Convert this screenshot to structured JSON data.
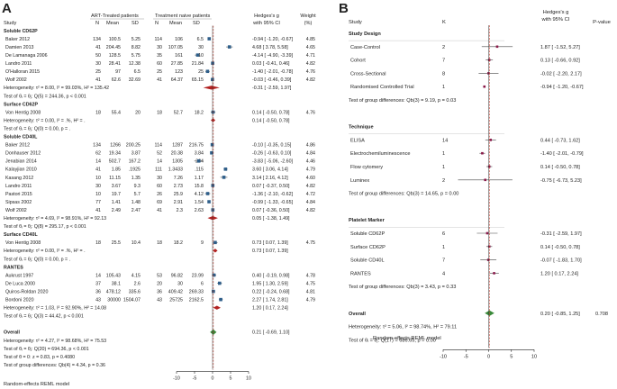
{
  "panel_a": {
    "letter": "A",
    "headers": {
      "study": "Study",
      "group1": "ART-Treated patients",
      "group2": "Treatment naive patients",
      "n": "N",
      "mean": "Mean",
      "sd": "SD",
      "effect1": "Hedges's g",
      "effect2": "with 95% CI",
      "weight1": "Weight",
      "weight2": "(%)"
    },
    "footer": "Random-effects REML model"
  },
  "panel_b": {
    "letter": "B",
    "headers": {
      "study": "Study",
      "k": "K",
      "effect1": "Hedges's g",
      "effect2": "with 95% CI",
      "pvalue": "P-value"
    },
    "footer": "Random-effects REML model"
  },
  "chart_data": [
    {
      "type": "forest",
      "panel": "A",
      "xlim": [
        -10,
        10
      ],
      "xticks": [
        -10,
        -5,
        0,
        5,
        10
      ],
      "null_line": 0,
      "overall_line": 0.21,
      "rows": [
        {
          "kind": "header",
          "label": "Soluble CD62P"
        },
        {
          "kind": "study",
          "label": "Baker 2012",
          "n1": "134",
          "m1": "100.5",
          "s1": "5.25",
          "n2": "114",
          "m2": "106",
          "s2": "6.5",
          "es": -0.94,
          "lo": -1.2,
          "hi": -0.67,
          "ci": "-0.94 [ -1.20, -0.67]",
          "w": "4.85"
        },
        {
          "kind": "study",
          "label": "Damien 2013",
          "n1": "41",
          "m1": "204.45",
          "s1": "8.82",
          "n2": "30",
          "m2": "107.05",
          "s2": "30",
          "es": 4.68,
          "lo": 3.78,
          "hi": 5.58,
          "ci": "4.68 [ 3.78, 5.58]",
          "w": "4.65"
        },
        {
          "kind": "study",
          "label": "De Lamanaga 2006",
          "n1": "50",
          "m1": "128.5",
          "s1": "5.75",
          "n2": "35",
          "m2": "161",
          "s2": "10",
          "es": -4.14,
          "lo": -4.9,
          "hi": -3.39,
          "ci": "-4.14 [ -4.90, -3.39]",
          "w": "4.71"
        },
        {
          "kind": "study",
          "label": "Landro 2011",
          "n1": "30",
          "m1": "28.41",
          "s1": "12.38",
          "n2": "60",
          "m2": "27.85",
          "s2": "21.84",
          "es": 0.03,
          "lo": -0.41,
          "hi": 0.46,
          "ci": "0.03 [ -0.41, 0.46]",
          "w": "4.82"
        },
        {
          "kind": "study",
          "label": "O'Halloran 2015",
          "n1": "25",
          "m1": "97",
          "s1": "6.5",
          "n2": "25",
          "m2": "123",
          "s2": "25",
          "es": -1.4,
          "lo": -2.01,
          "hi": -0.78,
          "ci": "-1.40 [ -2.01, -0.78]",
          "w": "4.76"
        },
        {
          "kind": "study",
          "label": "Wolf 2002",
          "n1": "41",
          "m1": "62.6",
          "s1": "32.69",
          "n2": "41",
          "m2": "64.37",
          "s2": "65.15",
          "es": -0.03,
          "lo": -0.46,
          "hi": 0.39,
          "ci": "-0.03 [ -0.46, 0.39]",
          "w": "4.82"
        },
        {
          "kind": "pooled",
          "label": "Heterogeneity: τ² = 8.00, I² = 99.03%, H² = 135.42",
          "es": -0.31,
          "lo": -2.59,
          "hi": 1.97,
          "ci": "-0.31 [ -2.59, 1.97]"
        },
        {
          "kind": "note",
          "label": "Test of θᵢ = θⱼ: Q(5) = 244.36, p < 0.001"
        },
        {
          "kind": "header",
          "label": "Surface CD62P"
        },
        {
          "kind": "study",
          "label": "Von Hentig 2008",
          "n1": "18",
          "m1": "55.4",
          "s1": "20",
          "n2": "18",
          "m2": "52.7",
          "s2": "18.2",
          "es": 0.14,
          "lo": -0.5,
          "hi": 0.78,
          "ci": "0.14 [ -0.50, 0.78]",
          "w": "4.76"
        },
        {
          "kind": "pooled",
          "label": "Heterogeneity: τ² = 0.00, I² = .%, H² = .",
          "es": 0.14,
          "lo": -0.5,
          "hi": 0.78,
          "ci": "0.14 [ -0.50, 0.78]"
        },
        {
          "kind": "note",
          "label": "Test of θᵢ = θⱼ: Q(0) = 0.00, p = ."
        },
        {
          "kind": "header",
          "label": "Soluble CD40L"
        },
        {
          "kind": "study",
          "label": "Baker 2012",
          "n1": "134",
          "m1": "1266",
          "s1": "200.25",
          "n2": "114",
          "m2": "1287",
          "s2": "216.75",
          "es": -0.1,
          "lo": -0.35,
          "hi": 0.15,
          "ci": "-0.10 [ -0.35, 0.15]",
          "w": "4.86"
        },
        {
          "kind": "study",
          "label": "Donhauser 2012",
          "n1": "62",
          "m1": "19.34",
          "s1": "3.87",
          "n2": "52",
          "m2": "20.38",
          "s2": "3.84",
          "es": -0.26,
          "lo": -0.63,
          "hi": 0.1,
          "ci": "-0.26 [ -0.63, 0.10]",
          "w": "4.84"
        },
        {
          "kind": "study",
          "label": "Jenabian 2014",
          "n1": "14",
          "m1": "502.7",
          "s1": "167.2",
          "n2": "14",
          "m2": "1305",
          "s2": "234",
          "es": -3.83,
          "lo": -5.06,
          "hi": -2.6,
          "ci": "-3.83 [ -5.06, -2.60]",
          "w": "4.46"
        },
        {
          "kind": "study",
          "label": "Kalayjian 2010",
          "n1": "41",
          "m1": "1.85",
          "s1": ".1925",
          "n2": "111",
          "m2": "1.3433",
          "s2": ".115",
          "es": 3.6,
          "lo": 3.06,
          "hi": 4.14,
          "ci": "3.60 [ 3.06, 4.14]",
          "w": "4.79"
        },
        {
          "kind": "study",
          "label": "Kasang 2012",
          "n1": "10",
          "m1": "11.15",
          "s1": "1.35",
          "n2": "30",
          "m2": "7.26",
          "s2": "1.17",
          "es": 3.14,
          "lo": 2.16,
          "hi": 4.12,
          "ci": "3.14 [ 2.16, 4.12]",
          "w": "4.60"
        },
        {
          "kind": "study",
          "label": "Landro 2011",
          "n1": "30",
          "m1": "3.67",
          "s1": "9.3",
          "n2": "60",
          "m2": "2.73",
          "s2": "15.8",
          "es": 0.07,
          "lo": -0.37,
          "hi": 0.5,
          "ci": "0.07 [ -0.37, 0.50]",
          "w": "4.82"
        },
        {
          "kind": "study",
          "label": "Pastori 2015",
          "n1": "10",
          "m1": "19.7",
          "s1": "5.7",
          "n2": "26",
          "m2": "25.9",
          "s2": "4.12",
          "es": -1.36,
          "lo": -2.1,
          "hi": -0.62,
          "ci": "-1.36 [ -2.10, -0.62]",
          "w": "4.72"
        },
        {
          "kind": "study",
          "label": "Sipsas 2002",
          "n1": "77",
          "m1": "1.41",
          "s1": "1.48",
          "n2": "69",
          "m2": "2.91",
          "s2": "1.54",
          "es": -0.99,
          "lo": -1.33,
          "hi": -0.65,
          "ci": "-0.99 [ -1.33, -0.65]",
          "w": "4.84"
        },
        {
          "kind": "study",
          "label": "Wolf 2002",
          "n1": "41",
          "m1": "2.49",
          "s1": "2.47",
          "n2": "41",
          "m2": "2.3",
          "s2": "2.63",
          "es": 0.07,
          "lo": -0.36,
          "hi": 0.5,
          "ci": "0.07 [ -0.36, 0.50]",
          "w": "4.82"
        },
        {
          "kind": "pooled",
          "label": "Heterogeneity: τ² = 4.69, I² = 98.91%, H² = 92.13",
          "es": 0.05,
          "lo": -1.38,
          "hi": 1.49,
          "ci": "0.05 [ -1.38, 1.49]"
        },
        {
          "kind": "note",
          "label": "Test of θᵢ = θⱼ: Q(8) = 295.17, p < 0.001"
        },
        {
          "kind": "header",
          "label": "Surface CD40L"
        },
        {
          "kind": "study",
          "label": "Von Hentig 2008",
          "n1": "18",
          "m1": "25.5",
          "s1": "10.4",
          "n2": "18",
          "m2": "18.2",
          "s2": "9",
          "es": 0.73,
          "lo": 0.07,
          "hi": 1.39,
          "ci": "0.73 [ 0.07, 1.39]",
          "w": "4.75"
        },
        {
          "kind": "pooled",
          "label": "Heterogeneity: τ² = 0.00, I² = .%, H² = .",
          "es": 0.73,
          "lo": 0.07,
          "hi": 1.39,
          "ci": "0.73 [ 0.07, 1.39]"
        },
        {
          "kind": "note",
          "label": "Test of θᵢ = θⱼ: Q(0) = 0.00, p = ."
        },
        {
          "kind": "header",
          "label": "RANTES"
        },
        {
          "kind": "study",
          "label": "Aukrust 1997",
          "n1": "14",
          "m1": "105.43",
          "s1": "4.15",
          "n2": "53",
          "m2": "96.82",
          "s2": "23.99",
          "es": 0.4,
          "lo": -0.19,
          "hi": 0.98,
          "ci": "0.40 [ -0.19, 0.98]",
          "w": "4.78"
        },
        {
          "kind": "study",
          "label": "De Luca 2000",
          "n1": "37",
          "m1": "38.1",
          "s1": "2.6",
          "n2": "20",
          "m2": "30",
          "s2": "6",
          "es": 1.95,
          "lo": 1.3,
          "hi": 2.59,
          "ci": "1.95 [ 1.30, 2.59]",
          "w": "4.75"
        },
        {
          "kind": "study",
          "label": "Quiros-Roldan 2020",
          "n1": "36",
          "m1": "478.12",
          "s1": "335.6",
          "n2": "36",
          "m2": "409.42",
          "s2": "269.33",
          "es": 0.22,
          "lo": -0.24,
          "hi": 0.68,
          "ci": "0.22 [ -0.24, 0.68]",
          "w": "4.81"
        },
        {
          "kind": "study",
          "label": "Bordoni 2020",
          "n1": "43",
          "m1": "30000",
          "s1": "1504.07",
          "n2": "43",
          "m2": "25725",
          "s2": "2162.5",
          "es": 2.27,
          "lo": 1.74,
          "hi": 2.81,
          "ci": "2.27 [ 1.74, 2.81]",
          "w": "4.79"
        },
        {
          "kind": "pooled",
          "label": "Heterogeneity: τ² = 1.03, I² = 92.90%, H² = 14.08",
          "es": 1.2,
          "lo": 0.17,
          "hi": 2.24,
          "ci": "1.20 [ 0.17, 2.24]"
        },
        {
          "kind": "note",
          "label": "Test of θᵢ = θⱼ: Q(3) = 44.42, p < 0.001"
        },
        {
          "kind": "blank"
        },
        {
          "kind": "overall",
          "label": "Overall",
          "es": 0.21,
          "lo": -0.69,
          "hi": 1.1,
          "ci": "0.21 [ -0.69, 1.10]"
        },
        {
          "kind": "note",
          "label": "Heterogeneity: τ² = 4.27, I² = 98.68%, H² = 75.53"
        },
        {
          "kind": "note",
          "label": "Test of θᵢ = θⱼ: Q(20) = 694.36, p < 0.001"
        },
        {
          "kind": "note",
          "label": "Test of θ = 0: z = 0.83, p = 0.4080"
        },
        {
          "kind": "note",
          "label": "Test of group differences: Q_b(4) = 4.34, p = 0.36"
        }
      ]
    },
    {
      "type": "forest",
      "panel": "B",
      "xlim": [
        -10,
        10
      ],
      "xticks": [
        -10,
        -5,
        0,
        5,
        10
      ],
      "null_line": 0,
      "overall_line": 0.2,
      "rows": [
        {
          "kind": "header",
          "label": "Study Design"
        },
        {
          "kind": "study",
          "label": "Case-Control",
          "k": "2",
          "es": 1.87,
          "lo": -1.52,
          "hi": 5.27,
          "ci": "1.87 [ -1.52, 5.27]",
          "p": "0.279"
        },
        {
          "kind": "study",
          "label": "Cohort",
          "k": "7",
          "es": 0.13,
          "lo": -0.66,
          "hi": 0.92,
          "ci": "0.13 [ -0.66, 0.92]",
          "p": "0.749"
        },
        {
          "kind": "study",
          "label": "Cross-Sectional",
          "k": "8",
          "es": -0.02,
          "lo": -2.2,
          "hi": 2.17,
          "ci": "-0.02 [ -2.20, 2.17]",
          "p": "0.989"
        },
        {
          "kind": "study",
          "label": "Randomised Controlled Trial",
          "k": "1",
          "es": -0.94,
          "lo": -1.2,
          "hi": -0.67,
          "ci": "-0.94 [ -1.20, -0.67]",
          "p": "0.000"
        },
        {
          "kind": "note",
          "label": "Test of group differences: Q_b(3) = 9.19, p = 0.03"
        },
        {
          "kind": "blank"
        },
        {
          "kind": "header",
          "label": "Technique"
        },
        {
          "kind": "study",
          "label": "ELISA",
          "k": "14",
          "es": 0.44,
          "lo": -0.73,
          "hi": 1.62,
          "ci": "0.44 [ -0.73, 1.62]",
          "p": "0.460"
        },
        {
          "kind": "study",
          "label": "Electrochemiluminescence",
          "k": "1",
          "es": -1.4,
          "lo": -2.01,
          "hi": -0.79,
          "ci": "-1.40 [ -2.01, -0.79]",
          "p": "0.000"
        },
        {
          "kind": "study",
          "label": "Flow cytomery",
          "k": "1",
          "es": 0.14,
          "lo": -0.5,
          "hi": 0.78,
          "ci": "0.14 [ -0.50, 0.78]",
          "p": "0.672"
        },
        {
          "kind": "study",
          "label": "Luminex",
          "k": "2",
          "es": -0.75,
          "lo": -6.73,
          "hi": 5.23,
          "ci": "-0.75 [ -6.73, 5.23]",
          "p": "0.806"
        },
        {
          "kind": "note",
          "label": "Test of group differences: Q_b(3) = 14.65, p = 0.00"
        },
        {
          "kind": "blank"
        },
        {
          "kind": "header",
          "label": "Platelet Marker"
        },
        {
          "kind": "study",
          "label": "Soluble CD62P",
          "k": "6",
          "es": -0.31,
          "lo": -2.59,
          "hi": 1.97,
          "ci": "-0.31 [ -2.59, 1.97]",
          "p": "0.791"
        },
        {
          "kind": "study",
          "label": "Surface CD62P",
          "k": "1",
          "es": 0.14,
          "lo": -0.5,
          "hi": 0.78,
          "ci": "0.14 [ -0.50, 0.78]",
          "p": "0.672"
        },
        {
          "kind": "study",
          "label": "Soluble CD40L",
          "k": "7",
          "es": -0.07,
          "lo": -1.83,
          "hi": 1.7,
          "ci": "-0.07 [ -1.83, 1.70]",
          "p": "0.944"
        },
        {
          "kind": "study",
          "label": "RANTES",
          "k": "4",
          "es": 1.2,
          "lo": 0.17,
          "hi": 2.24,
          "ci": "1.20 [ 0.17, 2.24]",
          "p": "0.023"
        },
        {
          "kind": "note",
          "label": "Test of group differences: Q_b(3) = 3.43, p = 0.33"
        },
        {
          "kind": "blank"
        },
        {
          "kind": "overall",
          "label": "Overall",
          "es": 0.2,
          "lo": -0.85,
          "hi": 1.25,
          "ci": "0.20 [ -0.85, 1.25]",
          "p": "0.708"
        },
        {
          "kind": "note",
          "label": "Heterogeneity: τ² = 5.06, I² = 98.74%, H² = 79.11"
        },
        {
          "kind": "note",
          "label": "Test of θᵢ = θⱼ: Q(17) = 686.65, p = 0.00"
        }
      ]
    }
  ],
  "colors": {
    "study_marker": "#2f5f8a",
    "pooled_marker": "#b22222",
    "overall_marker": "#3a8a3a",
    "ci_line": "#444444",
    "null_line": "#333333",
    "overall_line": "#c0392b",
    "header_line": "#bbbbbb",
    "b_marker": "#8b1a4a"
  }
}
